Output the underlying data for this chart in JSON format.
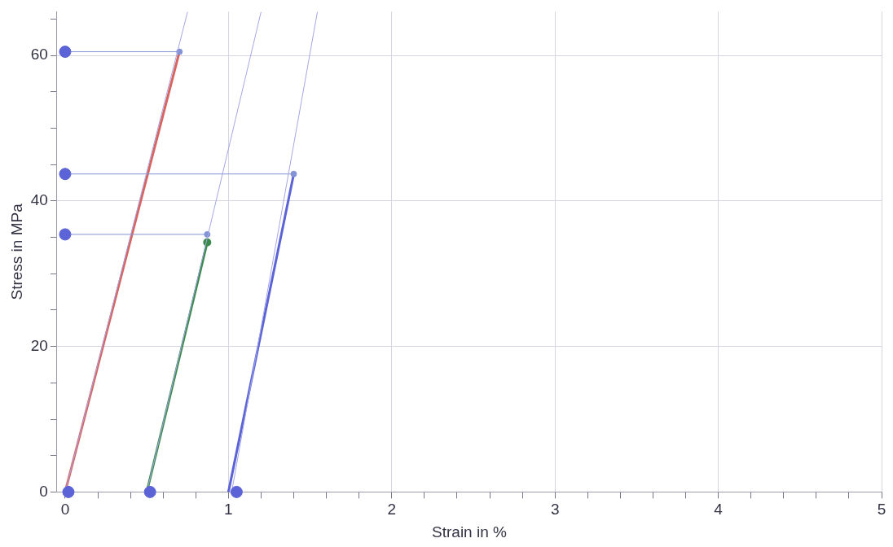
{
  "chart_data": {
    "type": "line",
    "xlabel": "Strain in %",
    "ylabel": "Stress in MPa",
    "xlim": [
      -0.05,
      5
    ],
    "xticks": [
      0,
      {
        "value": 0.2,
        "label": null
      },
      {
        "value": 0.4,
        "label": null
      },
      {
        "value": 0.6,
        "label": null
      },
      {
        "value": 0.8,
        "label": null
      },
      1,
      {
        "value": 1.2,
        "label": null
      },
      {
        "value": 1.4,
        "label": null
      },
      {
        "value": 1.6,
        "label": null
      },
      {
        "value": 1.8,
        "label": null
      },
      2,
      {
        "value": 2.2,
        "label": null
      },
      {
        "value": 2.4,
        "label": null
      },
      {
        "value": 2.6,
        "label": null
      },
      {
        "value": 2.8,
        "label": null
      },
      3,
      {
        "value": 3.2,
        "label": null
      },
      {
        "value": 3.4,
        "label": null
      },
      {
        "value": 3.6,
        "label": null
      },
      {
        "value": 3.8,
        "label": null
      },
      4,
      {
        "value": 4.2,
        "label": null
      },
      {
        "value": 4.4,
        "label": null
      },
      {
        "value": 4.6,
        "label": null
      },
      {
        "value": 4.8,
        "label": null
      },
      5
    ],
    "ylim": [
      0,
      66
    ],
    "yticks": [
      0,
      {
        "value": 5,
        "label": null
      },
      {
        "value": 10,
        "label": null
      },
      {
        "value": 15,
        "label": null
      },
      20,
      {
        "value": 25,
        "label": null
      },
      {
        "value": 30,
        "label": null
      },
      {
        "value": 35,
        "label": null
      },
      40,
      {
        "value": 45,
        "label": null
      },
      {
        "value": 50,
        "label": null
      },
      {
        "value": 55,
        "label": null
      },
      60,
      {
        "value": 65,
        "label": null
      }
    ],
    "grid": true,
    "legend": false,
    "line_style": "solid",
    "series": [
      {
        "color": "#a3a6e6",
        "x": [
          0,
          0.75
        ],
        "values": [
          0,
          66
        ],
        "marker": "none"
      },
      {
        "color": "#a3a6e6",
        "x": [
          0.5,
          1.2
        ],
        "values": [
          0,
          66
        ],
        "marker": "none"
      },
      {
        "color": "#a3a6e6",
        "x": [
          1.02,
          1.545
        ],
        "values": [
          0,
          66
        ],
        "marker": "none"
      },
      {
        "color": "#8393d6",
        "x": [
          0,
          0.7
        ],
        "values": [
          60.5,
          60.5
        ],
        "marker": "circle"
      },
      {
        "color": "#8393d6",
        "x": [
          0,
          1.4
        ],
        "values": [
          43.7,
          43.7
        ],
        "marker": "circle"
      },
      {
        "color": "#8393d6",
        "x": [
          0,
          0.87
        ],
        "values": [
          35.4,
          35.4
        ],
        "marker": "circle"
      },
      {
        "color": "#d9645f",
        "x": [
          0,
          0.7
        ],
        "values": [
          0,
          60.5
        ],
        "marker": "none"
      },
      {
        "color": "#3c8a4c",
        "x": [
          0.5,
          0.87
        ],
        "values": [
          0,
          34.3
        ],
        "marker": "circle"
      },
      {
        "color": "#5b63d6",
        "x": [
          1.0,
          1.4
        ],
        "values": [
          0,
          43.7
        ],
        "marker": "none"
      },
      {
        "type": "scatter",
        "color": "#5b63d6",
        "x": [
          0,
          0,
          0
        ],
        "values": [
          60.5,
          43.7,
          35.4
        ],
        "marker": "circle"
      },
      {
        "type": "scatter",
        "color": "#5b63d6",
        "x": [
          0.02,
          0.52,
          1.05
        ],
        "values": [
          0,
          0,
          0
        ],
        "marker": "circle"
      }
    ]
  }
}
